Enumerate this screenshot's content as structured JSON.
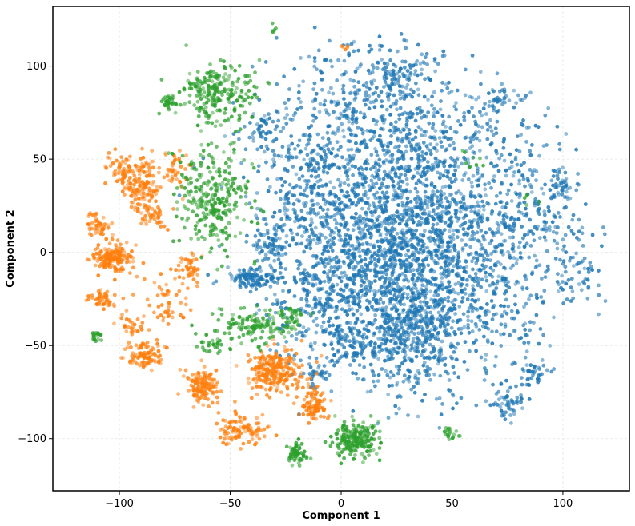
{
  "chart_data": {
    "type": "scatter",
    "xlabel": "Component 1",
    "ylabel": "Component 2",
    "xlim": [
      -130,
      130
    ],
    "ylim": [
      -128,
      132
    ],
    "x_ticks": [
      -100,
      -50,
      0,
      50,
      100
    ],
    "y_ticks": [
      -100,
      -50,
      0,
      50,
      100
    ],
    "grid": true,
    "legend": "none",
    "colors": {
      "blue": "#1f77b4",
      "orange": "#ff7f0e",
      "green": "#2ca02c"
    },
    "series": [
      {
        "color": "#1f77b4",
        "point_style": "dense cloud",
        "clusters": [
          {
            "cx": 30,
            "cy": -5,
            "sx": 22,
            "sy": 30,
            "n": 1500
          },
          {
            "cx": 15,
            "cy": 40,
            "sx": 28,
            "sy": 30,
            "n": 700
          },
          {
            "cx": 55,
            "cy": 45,
            "sx": 20,
            "sy": 25,
            "n": 260
          },
          {
            "cx": 30,
            "cy": -45,
            "sx": 14,
            "sy": 14,
            "n": 350
          },
          {
            "cx": 10,
            "cy": 80,
            "sx": 20,
            "sy": 20,
            "n": 260
          },
          {
            "cx": -15,
            "cy": 20,
            "sx": 12,
            "sy": 30,
            "n": 260
          },
          {
            "cx": -5,
            "cy": -25,
            "sx": 12,
            "sy": 20,
            "n": 220
          },
          {
            "cx": 75,
            "cy": -10,
            "sx": 12,
            "sy": 30,
            "n": 220
          },
          {
            "cx": 90,
            "cy": 15,
            "sx": 15,
            "sy": 20,
            "n": 120
          },
          {
            "cx": -40,
            "cy": -14,
            "sx": 6,
            "sy": 3,
            "n": 110
          },
          {
            "cx": -32,
            "cy": 5,
            "sx": 4,
            "sy": 5,
            "n": 60
          },
          {
            "cx": 75,
            "cy": -80,
            "sx": 4,
            "sy": 4,
            "n": 50
          },
          {
            "cx": 87,
            "cy": -66,
            "sx": 3,
            "sy": 3,
            "n": 35
          },
          {
            "cx": 72,
            "cy": 82,
            "sx": 4,
            "sy": 3,
            "n": 40
          },
          {
            "cx": 100,
            "cy": 35,
            "sx": 3,
            "sy": 4,
            "n": 30
          },
          {
            "cx": 5,
            "cy": -50,
            "sx": 5,
            "sy": 5,
            "n": 50
          },
          {
            "cx": 28,
            "cy": 95,
            "sx": 6,
            "sy": 5,
            "n": 60
          },
          {
            "cx": -35,
            "cy": 65,
            "sx": 4,
            "sy": 5,
            "n": 40
          },
          {
            "cx": 105,
            "cy": -5,
            "sx": 8,
            "sy": 12,
            "n": 40
          },
          {
            "cx": -10,
            "cy": -65,
            "sx": 3,
            "sy": 3,
            "n": 25
          },
          {
            "cx": 110,
            "cy": -15,
            "sx": 5,
            "sy": 5,
            "n": 20
          }
        ]
      },
      {
        "color": "#ff7f0e",
        "point_style": "clustered",
        "clusters": [
          {
            "cx": -103,
            "cy": -3,
            "sx": 5,
            "sy": 4,
            "n": 170
          },
          {
            "cx": -90,
            "cy": 38,
            "sx": 5,
            "sy": 7,
            "n": 150
          },
          {
            "cx": -88,
            "cy": -55,
            "sx": 4,
            "sy": 4,
            "n": 90
          },
          {
            "cx": -63,
            "cy": -72,
            "sx": 4,
            "sy": 5,
            "n": 130
          },
          {
            "cx": -30,
            "cy": -63,
            "sx": 6,
            "sy": 6,
            "n": 240
          },
          {
            "cx": -45,
            "cy": -95,
            "sx": 5,
            "sy": 4,
            "n": 100
          },
          {
            "cx": -12,
            "cy": -82,
            "sx": 3,
            "sy": 4,
            "n": 90
          },
          {
            "cx": -110,
            "cy": 15,
            "sx": 3,
            "sy": 3,
            "n": 45
          },
          {
            "cx": -108,
            "cy": -25,
            "sx": 3,
            "sy": 3,
            "n": 45
          },
          {
            "cx": -85,
            "cy": 20,
            "sx": 3,
            "sy": 3,
            "n": 45
          },
          {
            "cx": -75,
            "cy": 45,
            "sx": 3,
            "sy": 6,
            "n": 40
          },
          {
            "cx": -68,
            "cy": -8,
            "sx": 3,
            "sy": 4,
            "n": 40
          },
          {
            "cx": -80,
            "cy": -25,
            "sx": 6,
            "sy": 8,
            "n": 55
          },
          {
            "cx": -100,
            "cy": 45,
            "sx": 4,
            "sy": 4,
            "n": 35
          },
          {
            "cx": -95,
            "cy": -40,
            "sx": 3,
            "sy": 3,
            "n": 30
          },
          {
            "cx": 2,
            "cy": 110,
            "sx": 1,
            "sy": 1,
            "n": 5
          }
        ]
      },
      {
        "color": "#2ca02c",
        "point_style": "clustered",
        "clusters": [
          {
            "cx": 7,
            "cy": -100,
            "sx": 5,
            "sy": 5,
            "n": 200
          },
          {
            "cx": -20,
            "cy": -108,
            "sx": 2.5,
            "sy": 3,
            "n": 60
          },
          {
            "cx": -55,
            "cy": 85,
            "sx": 9,
            "sy": 8,
            "n": 220
          },
          {
            "cx": -58,
            "cy": 28,
            "sx": 8,
            "sy": 15,
            "n": 280
          },
          {
            "cx": -40,
            "cy": -40,
            "sx": 10,
            "sy": 5,
            "n": 130
          },
          {
            "cx": -78,
            "cy": 80,
            "sx": 2,
            "sy": 2,
            "n": 30
          },
          {
            "cx": -110,
            "cy": -45,
            "sx": 1.5,
            "sy": 1.5,
            "n": 20
          },
          {
            "cx": -57,
            "cy": -50,
            "sx": 4,
            "sy": 2,
            "n": 25
          },
          {
            "cx": 50,
            "cy": -97,
            "sx": 2,
            "sy": 2,
            "n": 18
          },
          {
            "cx": -30,
            "cy": 120,
            "sx": 1,
            "sy": 1,
            "n": 5
          },
          {
            "cx": -23,
            "cy": -35,
            "sx": 3,
            "sy": 3,
            "n": 30
          },
          {
            "cx": 60,
            "cy": 48,
            "sx": 4,
            "sy": 4,
            "n": 8
          },
          {
            "cx": 85,
            "cy": 30,
            "sx": 2,
            "sy": 2,
            "n": 4
          }
        ]
      }
    ]
  }
}
